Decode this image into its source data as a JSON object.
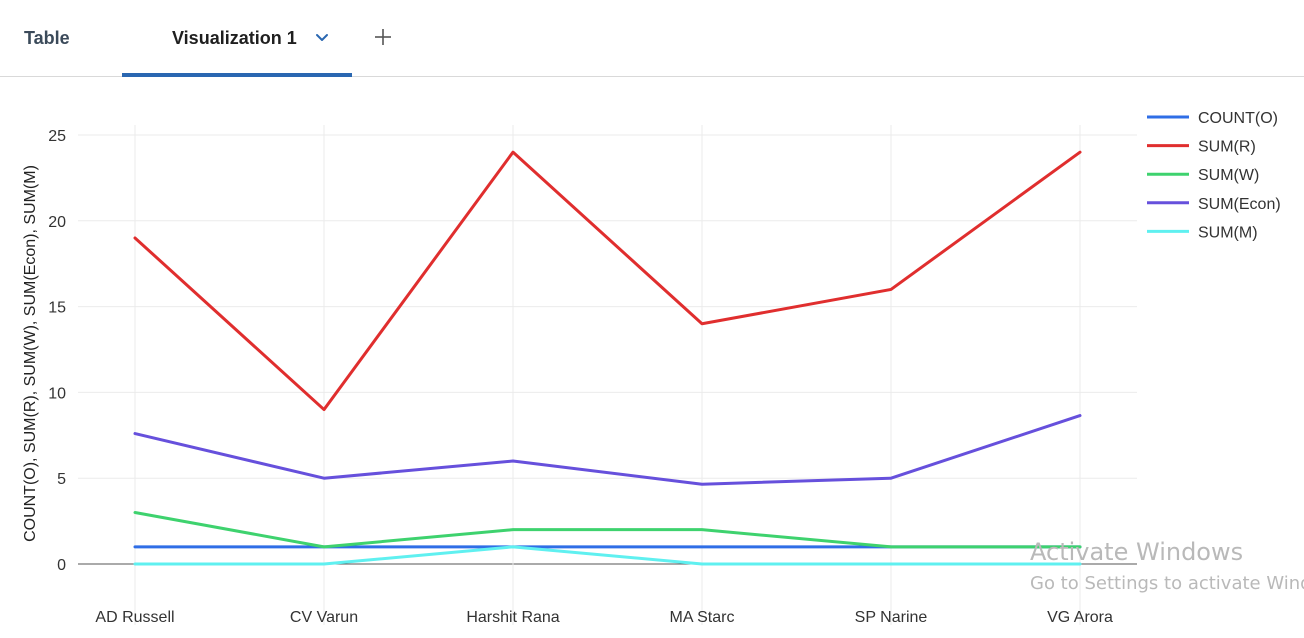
{
  "tabs": {
    "table_label": "Table",
    "viz_label": "Visualization 1",
    "add_icon": "plus-icon",
    "chevron_icon": "chevron-down-icon"
  },
  "colors": {
    "accent": "#2a67b1"
  },
  "watermark": {
    "line1": "Activate Windows",
    "line2": "Go to Settings to activate Windows."
  },
  "chart_data": {
    "type": "line",
    "title": "",
    "xlabel": "",
    "ylabel": "COUNT(O), SUM(R), SUM(W), SUM(Econ), SUM(M)",
    "ylim": [
      0,
      25
    ],
    "yticks": [
      "0",
      "5",
      "10",
      "15",
      "20",
      "25"
    ],
    "grid": true,
    "legend_position": "top-right",
    "categories": [
      "AD Russell",
      "CV Varun",
      "Harshit Rana",
      "MA Starc",
      "SP Narine",
      "VG Arora"
    ],
    "series": [
      {
        "name": "COUNT(O)",
        "color": "#2f6ee6",
        "values": [
          1,
          1,
          1,
          1,
          1,
          1
        ]
      },
      {
        "name": "SUM(R)",
        "color": "#e02e2e",
        "values": [
          19,
          9,
          24,
          14,
          16,
          24
        ]
      },
      {
        "name": "SUM(W)",
        "color": "#3ed26e",
        "values": [
          3,
          1,
          2,
          2,
          1,
          1
        ]
      },
      {
        "name": "SUM(Econ)",
        "color": "#6650dc",
        "values": [
          7.6,
          5,
          6,
          4.65,
          5,
          8.65
        ]
      },
      {
        "name": "SUM(M)",
        "color": "#5ff0f0",
        "values": [
          0,
          0,
          1,
          0,
          0,
          0
        ]
      }
    ]
  }
}
